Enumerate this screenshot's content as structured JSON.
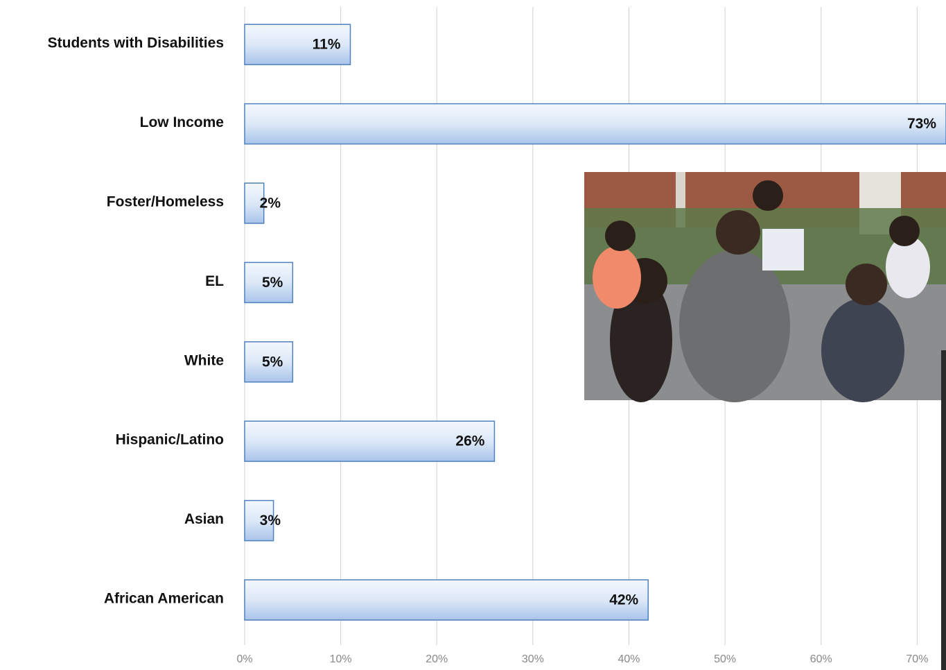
{
  "chart_data": {
    "type": "barh",
    "categories": [
      "Students with Disabilities",
      "Low Income",
      "Foster/Homeless",
      "EL",
      "White",
      "Hispanic/Latino",
      "Asian",
      "African American"
    ],
    "values": [
      11,
      73,
      2,
      5,
      5,
      26,
      3,
      42
    ],
    "value_labels": [
      "11%",
      "73%",
      "2%",
      "5%",
      "5%",
      "26%",
      "3%",
      "42%"
    ],
    "color": "#c6d9f1",
    "xlim": [
      0,
      73
    ],
    "xticks": [
      {
        "value": 0,
        "label": "0%"
      },
      {
        "value": 10,
        "label": "10%"
      },
      {
        "value": 20,
        "label": "20%"
      },
      {
        "value": 30,
        "label": "30%"
      },
      {
        "value": 40,
        "label": "40%"
      },
      {
        "value": 50,
        "label": "50%"
      },
      {
        "value": 60,
        "label": "60%"
      },
      {
        "value": 70,
        "label": "70%"
      }
    ],
    "grid": true
  }
}
